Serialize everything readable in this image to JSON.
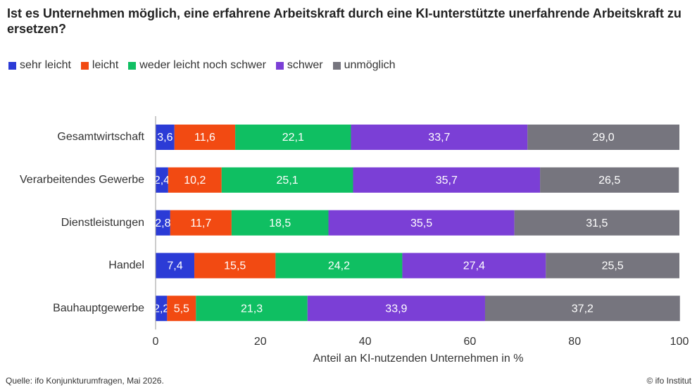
{
  "chart_data": {
    "type": "stacked_bar_horizontal",
    "title": "Ist es Unternehmen möglich, eine erfahrene Arbeitskraft durch eine KI-unterstützte unerfahrende Arbeitskraft zu ersetzen?",
    "categories": [
      "Gesamtwirtschaft",
      "Verarbeitendes Gewerbe",
      "Dienstleistungen",
      "Handel",
      "Bauhauptgewerbe"
    ],
    "series": [
      {
        "name": "sehr leicht",
        "color": "#2b3bd6",
        "values": [
          3.6,
          2.4,
          2.8,
          7.4,
          2.2
        ],
        "value_labels": [
          "3,6",
          "2,4",
          "2,8",
          "7,4",
          "2,2"
        ]
      },
      {
        "name": "leicht",
        "color": "#f24a12",
        "values": [
          11.6,
          10.2,
          11.7,
          15.5,
          5.5
        ],
        "value_labels": [
          "11,6",
          "10,2",
          "11,7",
          "15,5",
          "5,5"
        ]
      },
      {
        "name": "weder leicht noch schwer",
        "color": "#0fbf62",
        "values": [
          22.1,
          25.1,
          18.5,
          24.2,
          21.3
        ],
        "value_labels": [
          "22,1",
          "25,1",
          "18,5",
          "24,2",
          "21,3"
        ]
      },
      {
        "name": "schwer",
        "color": "#7b3fd6",
        "values": [
          33.7,
          35.7,
          35.5,
          27.4,
          33.9
        ],
        "value_labels": [
          "33,7",
          "35,7",
          "35,5",
          "27,4",
          "33,9"
        ]
      },
      {
        "name": "unmöglich",
        "color": "#76757e",
        "values": [
          29.0,
          26.5,
          31.5,
          25.5,
          37.2
        ],
        "value_labels": [
          "29,0",
          "26,5",
          "31,5",
          "25,5",
          "37,2"
        ]
      }
    ],
    "xlabel": "Anteil an KI-nutzenden Unternehmen in %",
    "xlim": [
      0,
      100
    ],
    "xticks": [
      0,
      20,
      40,
      60,
      80,
      100
    ],
    "source": "Quelle: ifo Konjunkturumfragen,  Mai 2026.",
    "credit": "© ifo Institut"
  }
}
